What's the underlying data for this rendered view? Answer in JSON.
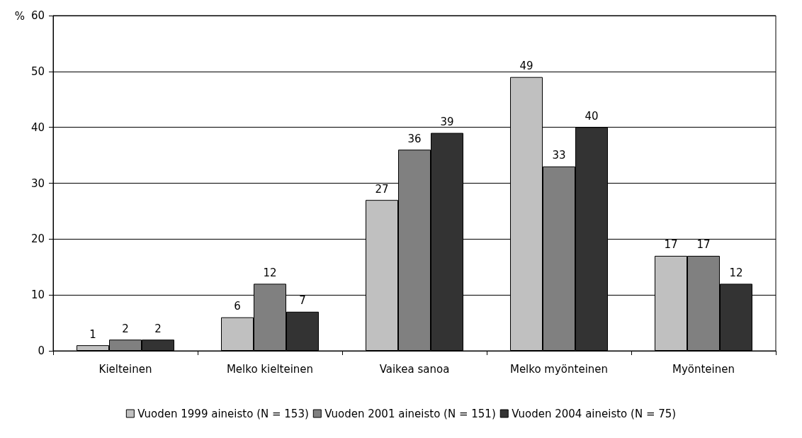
{
  "chart_data": {
    "type": "bar",
    "ylabel": "%",
    "categories": [
      "Kielteinen",
      "Melko kielteinen",
      "Vaikea sanoa",
      "Melko myönteinen",
      "Myönteinen"
    ],
    "series": [
      {
        "name": "Vuoden 1999 aineisto (N = 153)",
        "color": "#c0c0c0",
        "values": [
          1,
          6,
          27,
          49,
          17
        ]
      },
      {
        "name": "Vuoden 2001 aineisto (N = 151)",
        "color": "#808080",
        "values": [
          2,
          12,
          36,
          33,
          17
        ]
      },
      {
        "name": "Vuoden 2004 aineisto (N = 75)",
        "color": "#333333",
        "values": [
          2,
          7,
          39,
          40,
          12
        ]
      }
    ],
    "ylim": [
      0,
      60
    ],
    "yticks": [
      0,
      10,
      20,
      30,
      40,
      50,
      60
    ],
    "grid": "y",
    "legend": "bottom",
    "data_labels": true
  }
}
